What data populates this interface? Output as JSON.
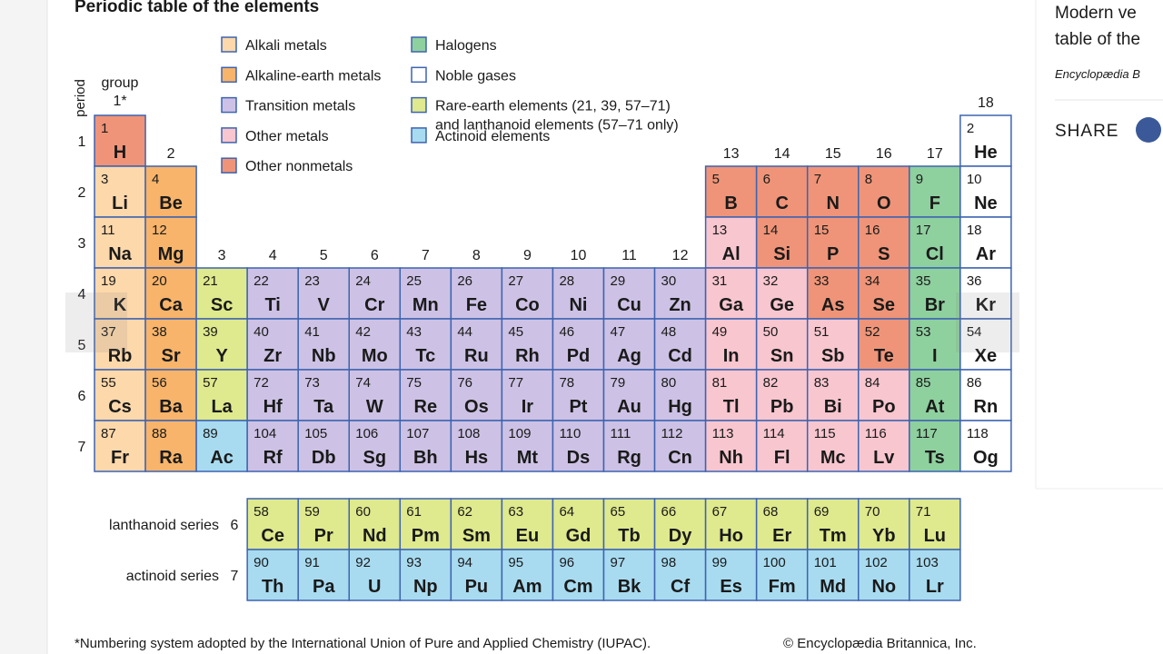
{
  "header": {
    "title": "Periodic table of the elements"
  },
  "legend": [
    {
      "lines": [
        "Alkali metals"
      ],
      "color": "#fcd8ab"
    },
    {
      "lines": [
        "Alkaline-earth metals"
      ],
      "color": "#f7b46a"
    },
    {
      "lines": [
        "Transition metals"
      ],
      "color": "#cdc2e5"
    },
    {
      "lines": [
        "Other metals"
      ],
      "color": "#f8c6cf"
    },
    {
      "lines": [
        "Other nonmetals"
      ],
      "color": "#ef9478"
    },
    {
      "lines": [
        "Halogens"
      ],
      "color": "#8fd09f"
    },
    {
      "lines": [
        "Noble gases"
      ],
      "color": "#ffffff"
    },
    {
      "lines": [
        "Rare-earth elements (21, 39, 57–71)",
        "and lanthanoid elements (57–71 only)"
      ],
      "color": "#dfe98d"
    },
    {
      "lines": [
        "Actinoid elements"
      ],
      "color": "#a8dbf0"
    }
  ],
  "axes": {
    "group_title": "group",
    "period_title": "period",
    "groups": [
      "1*",
      "2",
      "3",
      "4",
      "5",
      "6",
      "7",
      "8",
      "9",
      "10",
      "11",
      "12",
      "13",
      "14",
      "15",
      "16",
      "17",
      "18"
    ],
    "periods": [
      "1",
      "2",
      "3",
      "4",
      "5",
      "6",
      "7"
    ]
  },
  "table": {
    "periods": [
      [
        {
          "n": 1,
          "s": "H",
          "color": "#ef9478"
        },
        {
          "n": 2,
          "s": "He",
          "color": "#ffffff"
        }
      ],
      [
        {
          "n": 3,
          "s": "Li",
          "color": "#fcd8ab"
        },
        {
          "n": 4,
          "s": "Be",
          "color": "#f7b46a"
        },
        {
          "n": 5,
          "s": "B",
          "color": "#ef9478"
        },
        {
          "n": 6,
          "s": "C",
          "color": "#ef9478"
        },
        {
          "n": 7,
          "s": "N",
          "color": "#ef9478"
        },
        {
          "n": 8,
          "s": "O",
          "color": "#ef9478"
        },
        {
          "n": 9,
          "s": "F",
          "color": "#8fd09f"
        },
        {
          "n": 10,
          "s": "Ne",
          "color": "#ffffff"
        }
      ],
      [
        {
          "n": 11,
          "s": "Na",
          "color": "#fcd8ab"
        },
        {
          "n": 12,
          "s": "Mg",
          "color": "#f7b46a"
        },
        {
          "n": 13,
          "s": "Al",
          "color": "#f8c6cf"
        },
        {
          "n": 14,
          "s": "Si",
          "color": "#ef9478"
        },
        {
          "n": 15,
          "s": "P",
          "color": "#ef9478"
        },
        {
          "n": 16,
          "s": "S",
          "color": "#ef9478"
        },
        {
          "n": 17,
          "s": "Cl",
          "color": "#8fd09f"
        },
        {
          "n": 18,
          "s": "Ar",
          "color": "#ffffff"
        }
      ],
      [
        {
          "n": 19,
          "s": "K",
          "color": "#fcd8ab"
        },
        {
          "n": 20,
          "s": "Ca",
          "color": "#f7b46a"
        },
        {
          "n": 21,
          "s": "Sc",
          "color": "#dfe98d"
        },
        {
          "n": 22,
          "s": "Ti",
          "color": "#cdc2e5"
        },
        {
          "n": 23,
          "s": "V",
          "color": "#cdc2e5"
        },
        {
          "n": 24,
          "s": "Cr",
          "color": "#cdc2e5"
        },
        {
          "n": 25,
          "s": "Mn",
          "color": "#cdc2e5"
        },
        {
          "n": 26,
          "s": "Fe",
          "color": "#cdc2e5"
        },
        {
          "n": 27,
          "s": "Co",
          "color": "#cdc2e5"
        },
        {
          "n": 28,
          "s": "Ni",
          "color": "#cdc2e5"
        },
        {
          "n": 29,
          "s": "Cu",
          "color": "#cdc2e5"
        },
        {
          "n": 30,
          "s": "Zn",
          "color": "#cdc2e5"
        },
        {
          "n": 31,
          "s": "Ga",
          "color": "#f8c6cf"
        },
        {
          "n": 32,
          "s": "Ge",
          "color": "#f8c6cf"
        },
        {
          "n": 33,
          "s": "As",
          "color": "#ef9478"
        },
        {
          "n": 34,
          "s": "Se",
          "color": "#ef9478"
        },
        {
          "n": 35,
          "s": "Br",
          "color": "#8fd09f"
        },
        {
          "n": 36,
          "s": "Kr",
          "color": "#ffffff"
        }
      ],
      [
        {
          "n": 37,
          "s": "Rb",
          "color": "#fcd8ab"
        },
        {
          "n": 38,
          "s": "Sr",
          "color": "#f7b46a"
        },
        {
          "n": 39,
          "s": "Y",
          "color": "#dfe98d"
        },
        {
          "n": 40,
          "s": "Zr",
          "color": "#cdc2e5"
        },
        {
          "n": 41,
          "s": "Nb",
          "color": "#cdc2e5"
        },
        {
          "n": 42,
          "s": "Mo",
          "color": "#cdc2e5"
        },
        {
          "n": 43,
          "s": "Tc",
          "color": "#cdc2e5"
        },
        {
          "n": 44,
          "s": "Ru",
          "color": "#cdc2e5"
        },
        {
          "n": 45,
          "s": "Rh",
          "color": "#cdc2e5"
        },
        {
          "n": 46,
          "s": "Pd",
          "color": "#cdc2e5"
        },
        {
          "n": 47,
          "s": "Ag",
          "color": "#cdc2e5"
        },
        {
          "n": 48,
          "s": "Cd",
          "color": "#cdc2e5"
        },
        {
          "n": 49,
          "s": "In",
          "color": "#f8c6cf"
        },
        {
          "n": 50,
          "s": "Sn",
          "color": "#f8c6cf"
        },
        {
          "n": 51,
          "s": "Sb",
          "color": "#f8c6cf"
        },
        {
          "n": 52,
          "s": "Te",
          "color": "#ef9478"
        },
        {
          "n": 53,
          "s": "I",
          "color": "#8fd09f"
        },
        {
          "n": 54,
          "s": "Xe",
          "color": "#ffffff"
        }
      ],
      [
        {
          "n": 55,
          "s": "Cs",
          "color": "#fcd8ab"
        },
        {
          "n": 56,
          "s": "Ba",
          "color": "#f7b46a"
        },
        {
          "n": 57,
          "s": "La",
          "color": "#dfe98d"
        },
        {
          "n": 72,
          "s": "Hf",
          "color": "#cdc2e5"
        },
        {
          "n": 73,
          "s": "Ta",
          "color": "#cdc2e5"
        },
        {
          "n": 74,
          "s": "W",
          "color": "#cdc2e5"
        },
        {
          "n": 75,
          "s": "Re",
          "color": "#cdc2e5"
        },
        {
          "n": 76,
          "s": "Os",
          "color": "#cdc2e5"
        },
        {
          "n": 77,
          "s": "Ir",
          "color": "#cdc2e5"
        },
        {
          "n": 78,
          "s": "Pt",
          "color": "#cdc2e5"
        },
        {
          "n": 79,
          "s": "Au",
          "color": "#cdc2e5"
        },
        {
          "n": 80,
          "s": "Hg",
          "color": "#cdc2e5"
        },
        {
          "n": 81,
          "s": "Tl",
          "color": "#f8c6cf"
        },
        {
          "n": 82,
          "s": "Pb",
          "color": "#f8c6cf"
        },
        {
          "n": 83,
          "s": "Bi",
          "color": "#f8c6cf"
        },
        {
          "n": 84,
          "s": "Po",
          "color": "#f8c6cf"
        },
        {
          "n": 85,
          "s": "At",
          "color": "#8fd09f"
        },
        {
          "n": 86,
          "s": "Rn",
          "color": "#ffffff"
        }
      ],
      [
        {
          "n": 87,
          "s": "Fr",
          "color": "#fcd8ab"
        },
        {
          "n": 88,
          "s": "Ra",
          "color": "#f7b46a"
        },
        {
          "n": 89,
          "s": "Ac",
          "color": "#a8dbf0"
        },
        {
          "n": 104,
          "s": "Rf",
          "color": "#cdc2e5"
        },
        {
          "n": 105,
          "s": "Db",
          "color": "#cdc2e5"
        },
        {
          "n": 106,
          "s": "Sg",
          "color": "#cdc2e5"
        },
        {
          "n": 107,
          "s": "Bh",
          "color": "#cdc2e5"
        },
        {
          "n": 108,
          "s": "Hs",
          "color": "#cdc2e5"
        },
        {
          "n": 109,
          "s": "Mt",
          "color": "#cdc2e5"
        },
        {
          "n": 110,
          "s": "Ds",
          "color": "#cdc2e5"
        },
        {
          "n": 111,
          "s": "Rg",
          "color": "#cdc2e5"
        },
        {
          "n": 112,
          "s": "Cn",
          "color": "#cdc2e5"
        },
        {
          "n": 113,
          "s": "Nh",
          "color": "#f8c6cf"
        },
        {
          "n": 114,
          "s": "Fl",
          "color": "#f8c6cf"
        },
        {
          "n": 115,
          "s": "Mc",
          "color": "#f8c6cf"
        },
        {
          "n": 116,
          "s": "Lv",
          "color": "#f8c6cf"
        },
        {
          "n": 117,
          "s": "Ts",
          "color": "#8fd09f"
        },
        {
          "n": 118,
          "s": "Og",
          "color": "#ffffff"
        }
      ]
    ]
  },
  "series": [
    {
      "label": "lanthanoid series",
      "period": "6",
      "elements": [
        {
          "n": 58,
          "s": "Ce",
          "color": "#dfe98d"
        },
        {
          "n": 59,
          "s": "Pr",
          "color": "#dfe98d"
        },
        {
          "n": 60,
          "s": "Nd",
          "color": "#dfe98d"
        },
        {
          "n": 61,
          "s": "Pm",
          "color": "#dfe98d"
        },
        {
          "n": 62,
          "s": "Sm",
          "color": "#dfe98d"
        },
        {
          "n": 63,
          "s": "Eu",
          "color": "#dfe98d"
        },
        {
          "n": 64,
          "s": "Gd",
          "color": "#dfe98d"
        },
        {
          "n": 65,
          "s": "Tb",
          "color": "#dfe98d"
        },
        {
          "n": 66,
          "s": "Dy",
          "color": "#dfe98d"
        },
        {
          "n": 67,
          "s": "Ho",
          "color": "#dfe98d"
        },
        {
          "n": 68,
          "s": "Er",
          "color": "#dfe98d"
        },
        {
          "n": 69,
          "s": "Tm",
          "color": "#dfe98d"
        },
        {
          "n": 70,
          "s": "Yb",
          "color": "#dfe98d"
        },
        {
          "n": 71,
          "s": "Lu",
          "color": "#dfe98d"
        }
      ]
    },
    {
      "label": "actinoid series",
      "period": "7",
      "elements": [
        {
          "n": 90,
          "s": "Th",
          "color": "#a8dbf0"
        },
        {
          "n": 91,
          "s": "Pa",
          "color": "#a8dbf0"
        },
        {
          "n": 92,
          "s": "U",
          "color": "#a8dbf0"
        },
        {
          "n": 93,
          "s": "Np",
          "color": "#a8dbf0"
        },
        {
          "n": 94,
          "s": "Pu",
          "color": "#a8dbf0"
        },
        {
          "n": 95,
          "s": "Am",
          "color": "#a8dbf0"
        },
        {
          "n": 96,
          "s": "Cm",
          "color": "#a8dbf0"
        },
        {
          "n": 97,
          "s": "Bk",
          "color": "#a8dbf0"
        },
        {
          "n": 98,
          "s": "Cf",
          "color": "#a8dbf0"
        },
        {
          "n": 99,
          "s": "Es",
          "color": "#a8dbf0"
        },
        {
          "n": 100,
          "s": "Fm",
          "color": "#a8dbf0"
        },
        {
          "n": 101,
          "s": "Md",
          "color": "#a8dbf0"
        },
        {
          "n": 102,
          "s": "No",
          "color": "#a8dbf0"
        },
        {
          "n": 103,
          "s": "Lr",
          "color": "#a8dbf0"
        }
      ]
    }
  ],
  "footnote": "*Numbering system adopted by the International Union of Pure and Applied Chemistry (IUPAC).",
  "credit": "© Encyclopædia Britannica, Inc.",
  "sidebar": {
    "lines": [
      "Modern ve",
      "table of the"
    ],
    "source": "Encyclopædia B",
    "share": "SHARE"
  }
}
